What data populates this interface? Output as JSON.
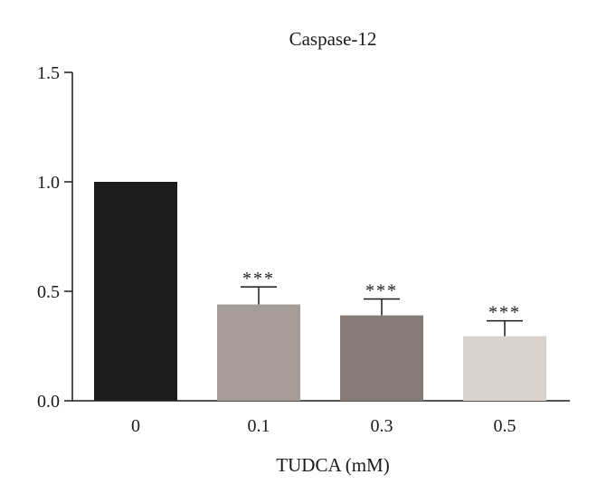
{
  "chart_data": {
    "type": "bar",
    "title": "Caspase-12",
    "xlabel": "TUDCA (mM)",
    "ylabel": "",
    "ylim": [
      0,
      1.5
    ],
    "yticks": [
      "0.0",
      "0.5",
      "1.0",
      "1.5"
    ],
    "categories": [
      "0",
      "0.1",
      "0.3",
      "0.5"
    ],
    "values": [
      1.0,
      0.44,
      0.39,
      0.295
    ],
    "errors": [
      0.0,
      0.08,
      0.075,
      0.07
    ],
    "annotations": [
      "",
      "***",
      "***",
      "***"
    ],
    "colors": [
      "#1c1c1c",
      "#a69d99",
      "#857c77",
      "#d9d3d0"
    ],
    "grid": false
  }
}
